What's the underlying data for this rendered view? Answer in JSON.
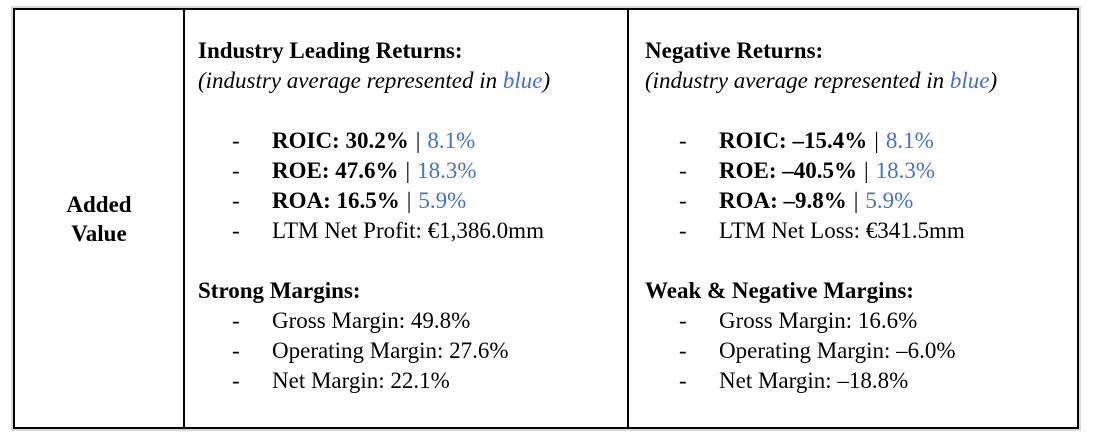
{
  "colors": {
    "accent_blue": "#4472C4",
    "text": "#000000",
    "border": "#000000"
  },
  "bullet_marker": "-",
  "pipe": "|",
  "row_label": "Added Value",
  "leading": {
    "heading": "Industry Leading Returns:",
    "note_prefix": "(industry average represented in ",
    "note_blue": "blue",
    "note_suffix": ")",
    "returns": [
      {
        "metric": "ROIC: 30.2%",
        "industry_avg": "8.1%"
      },
      {
        "metric": "ROE: 47.6%",
        "industry_avg": "18.3%"
      },
      {
        "metric": "ROA: 16.5%",
        "industry_avg": "5.9%"
      }
    ],
    "net_line": "LTM Net Profit: €1,386.0mm",
    "margins_heading": "Strong Margins:",
    "margins": [
      "Gross Margin: 49.8%",
      "Operating Margin: 27.6%",
      "Net Margin: 22.1%"
    ]
  },
  "negative": {
    "heading": "Negative Returns:",
    "note_prefix": "(industry average represented in ",
    "note_blue": "blue",
    "note_suffix": ")",
    "returns": [
      {
        "metric": "ROIC: –15.4%",
        "industry_avg": "8.1%"
      },
      {
        "metric": "ROE: –40.5%",
        "industry_avg": "18.3%"
      },
      {
        "metric": "ROA: –9.8%",
        "industry_avg": "5.9%"
      }
    ],
    "net_line": "LTM Net Loss: €341.5mm",
    "margins_heading": "Weak & Negative Margins:",
    "margins": [
      "Gross Margin: 16.6%",
      "Operating Margin: –6.0%",
      "Net Margin: –18.8%"
    ]
  }
}
